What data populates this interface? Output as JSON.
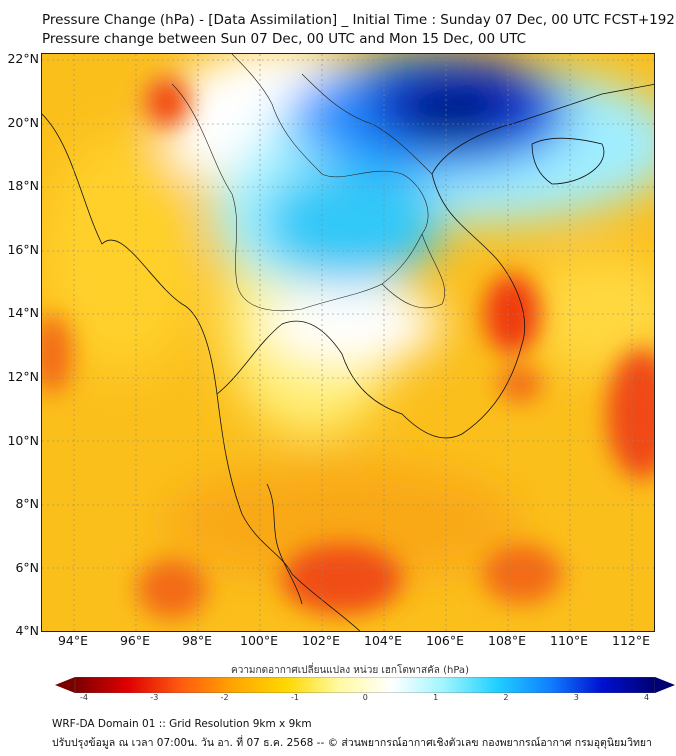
{
  "title": {
    "line1": "Pressure Change (hPa) - [Data Assimilation] _ Initial Time : Sunday 07 Dec, 00 UTC FCST+192",
    "line2": "Pressure change between Sun 07 Dec, 00 UTC and Mon 15 Dec, 00 UTC"
  },
  "map": {
    "lat_labels": [
      "22°N",
      "20°N",
      "18°N",
      "16°N",
      "14°N",
      "12°N",
      "10°N",
      "8°N",
      "6°N",
      "4°N"
    ],
    "lat_values": [
      22,
      20,
      18,
      16,
      14,
      12,
      10,
      8,
      6,
      4
    ],
    "lon_labels": [
      "94°E",
      "96°E",
      "98°E",
      "100°E",
      "102°E",
      "104°E",
      "106°E",
      "108°E",
      "110°E",
      "112°E"
    ],
    "lon_values": [
      94,
      96,
      98,
      100,
      102,
      104,
      106,
      108,
      110,
      112
    ]
  },
  "colorbar": {
    "title": "ความกดอากาศเปลี่ยนแปลง หน่วย เฮกโตพาสคัล (hPa)",
    "ticks": [
      "-4",
      "-3",
      "-2",
      "-1",
      "0",
      "1",
      "2",
      "3",
      "4"
    ],
    "range": [
      -4,
      4
    ],
    "colors": [
      "#7a0000",
      "#e00000",
      "#ff5a10",
      "#ffa500",
      "#ffd700",
      "#fffaa0",
      "#ffffff",
      "#9ff5ff",
      "#20d0ff",
      "#1080ff",
      "#0010d0",
      "#000070"
    ]
  },
  "footer": {
    "line1": "WRF-DA Domain 01 :: Grid Resolution 9km x 9km",
    "line2": "ปรับปรุงข้อมูล ณ เวลา 07:00น. วัน อา. ที่ 07 ธ.ค. 2568 -- © ส่วนพยากรณ์อากาศเชิงตัวเลข กองพยากรณ์อากาศ กรมอุตุนิยมวิทยา"
  }
}
